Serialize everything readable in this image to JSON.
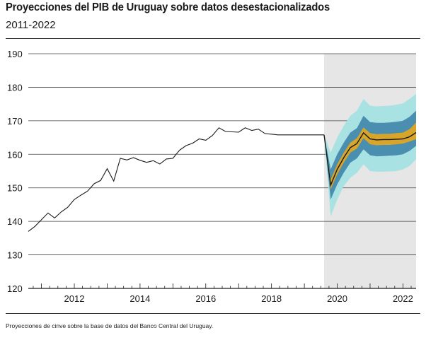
{
  "header": {
    "title": "Proyecciones del PIB de Uruguay sobre datos desestacionalizados",
    "subtitle": "2011-2022"
  },
  "footer": {
    "source": "Proyecciones de cinve sobre la base de datos del Banco Central del Uruguay."
  },
  "colors": {
    "line": "#1a1a1a",
    "forecast_background": "#e6e6e6",
    "band_outer": "#a8e2e2",
    "band_middle": "#4a8fb0",
    "band_inner": "#d6a52a",
    "axis": "#1a1a1a"
  },
  "chart_data": {
    "type": "line",
    "title": "Proyecciones del PIB de Uruguay sobre datos desestacionalizados",
    "subtitle": "2011-2022",
    "xlabel": "",
    "ylabel": "",
    "xlim": [
      2010.6,
      2022.4
    ],
    "ylim": [
      120,
      190
    ],
    "x_ticks": [
      2012,
      2014,
      2016,
      2018,
      2020,
      2022
    ],
    "x_tick_labels": [
      "2012",
      "2014",
      "2016",
      "2018",
      "2020",
      "2022"
    ],
    "y_ticks": [
      120,
      130,
      140,
      150,
      160,
      170,
      180,
      190
    ],
    "y_tick_labels": [
      "120",
      "130",
      "140",
      "150",
      "160",
      "170",
      "180",
      "190"
    ],
    "grid": "horizontal",
    "forecast_start": 2019.6,
    "historical": {
      "x": [
        2010.6,
        2010.8,
        2011.0,
        2011.2,
        2011.4,
        2011.6,
        2011.8,
        2012.0,
        2012.2,
        2012.4,
        2012.6,
        2012.8,
        2013.0,
        2013.2,
        2013.4,
        2013.6,
        2013.8,
        2014.0,
        2014.2,
        2014.4,
        2014.6,
        2014.8,
        2015.0,
        2015.2,
        2015.4,
        2015.6,
        2015.8,
        2016.0,
        2016.2,
        2016.4,
        2016.6,
        2016.8,
        2017.0,
        2017.2,
        2017.4,
        2017.6,
        2017.8,
        2018.0,
        2018.2,
        2018.4,
        2018.6,
        2018.8,
        2019.0,
        2019.2,
        2019.4,
        2019.6
      ],
      "y": [
        137,
        138.5,
        140.5,
        142.5,
        141,
        142.8,
        144.2,
        146.5,
        147.8,
        149,
        151.2,
        152.2,
        155.7,
        152,
        158.8,
        158.3,
        159,
        158.2,
        157.6,
        158.1,
        157.1,
        158.6,
        158.8,
        161.2,
        162.6,
        163.3,
        164.6,
        164.2,
        165.6,
        167.9,
        166.8,
        166.7,
        166.6,
        167.9,
        167.1,
        167.5,
        166.2,
        166,
        165.8,
        165.8,
        165.8,
        165.8,
        165.8,
        165.8,
        165.8,
        165.8
      ]
    },
    "forecast": {
      "x": [
        2019.6,
        2019.8,
        2020.0,
        2020.2,
        2020.4,
        2020.6,
        2020.8,
        2021.0,
        2021.2,
        2021.4,
        2021.6,
        2021.8,
        2022.0,
        2022.2,
        2022.4
      ],
      "median": [
        165.8,
        150.8,
        155.5,
        159,
        162,
        163.2,
        166.4,
        164.6,
        164.3,
        164.4,
        164.4,
        164.5,
        164.6,
        165.2,
        166.5
      ],
      "band_outer": {
        "low": [
          165.8,
          141.5,
          146.5,
          150.5,
          153,
          154.5,
          157,
          155,
          154.8,
          154.8,
          154.9,
          155,
          155.5,
          156.5,
          158.5
        ],
        "high": [
          165.8,
          160.5,
          165,
          168.5,
          171.5,
          173,
          176.5,
          174.5,
          174.3,
          174.4,
          174.5,
          174.8,
          175.2,
          176.5,
          178
        ]
      },
      "band_middle": {
        "low": [
          165.8,
          146.5,
          151,
          154.5,
          157.5,
          158.8,
          161.5,
          159.7,
          159.4,
          159.5,
          159.6,
          159.7,
          160,
          161,
          162.5
        ],
        "high": [
          165.8,
          155.5,
          160,
          163.5,
          166.5,
          167.8,
          171.5,
          169.6,
          169.4,
          169.4,
          169.5,
          169.7,
          170,
          171.2,
          173
        ]
      },
      "band_inner": {
        "low": [
          165.8,
          149.5,
          154,
          157.5,
          160.5,
          161.7,
          164.8,
          163,
          162.7,
          162.8,
          162.8,
          163,
          163.2,
          163.8,
          164.5
        ],
        "high": [
          165.8,
          152.5,
          157,
          160.5,
          163.5,
          164.8,
          168,
          166.3,
          166,
          166.1,
          166.1,
          166.3,
          166.5,
          167.5,
          169.5
        ]
      }
    }
  }
}
